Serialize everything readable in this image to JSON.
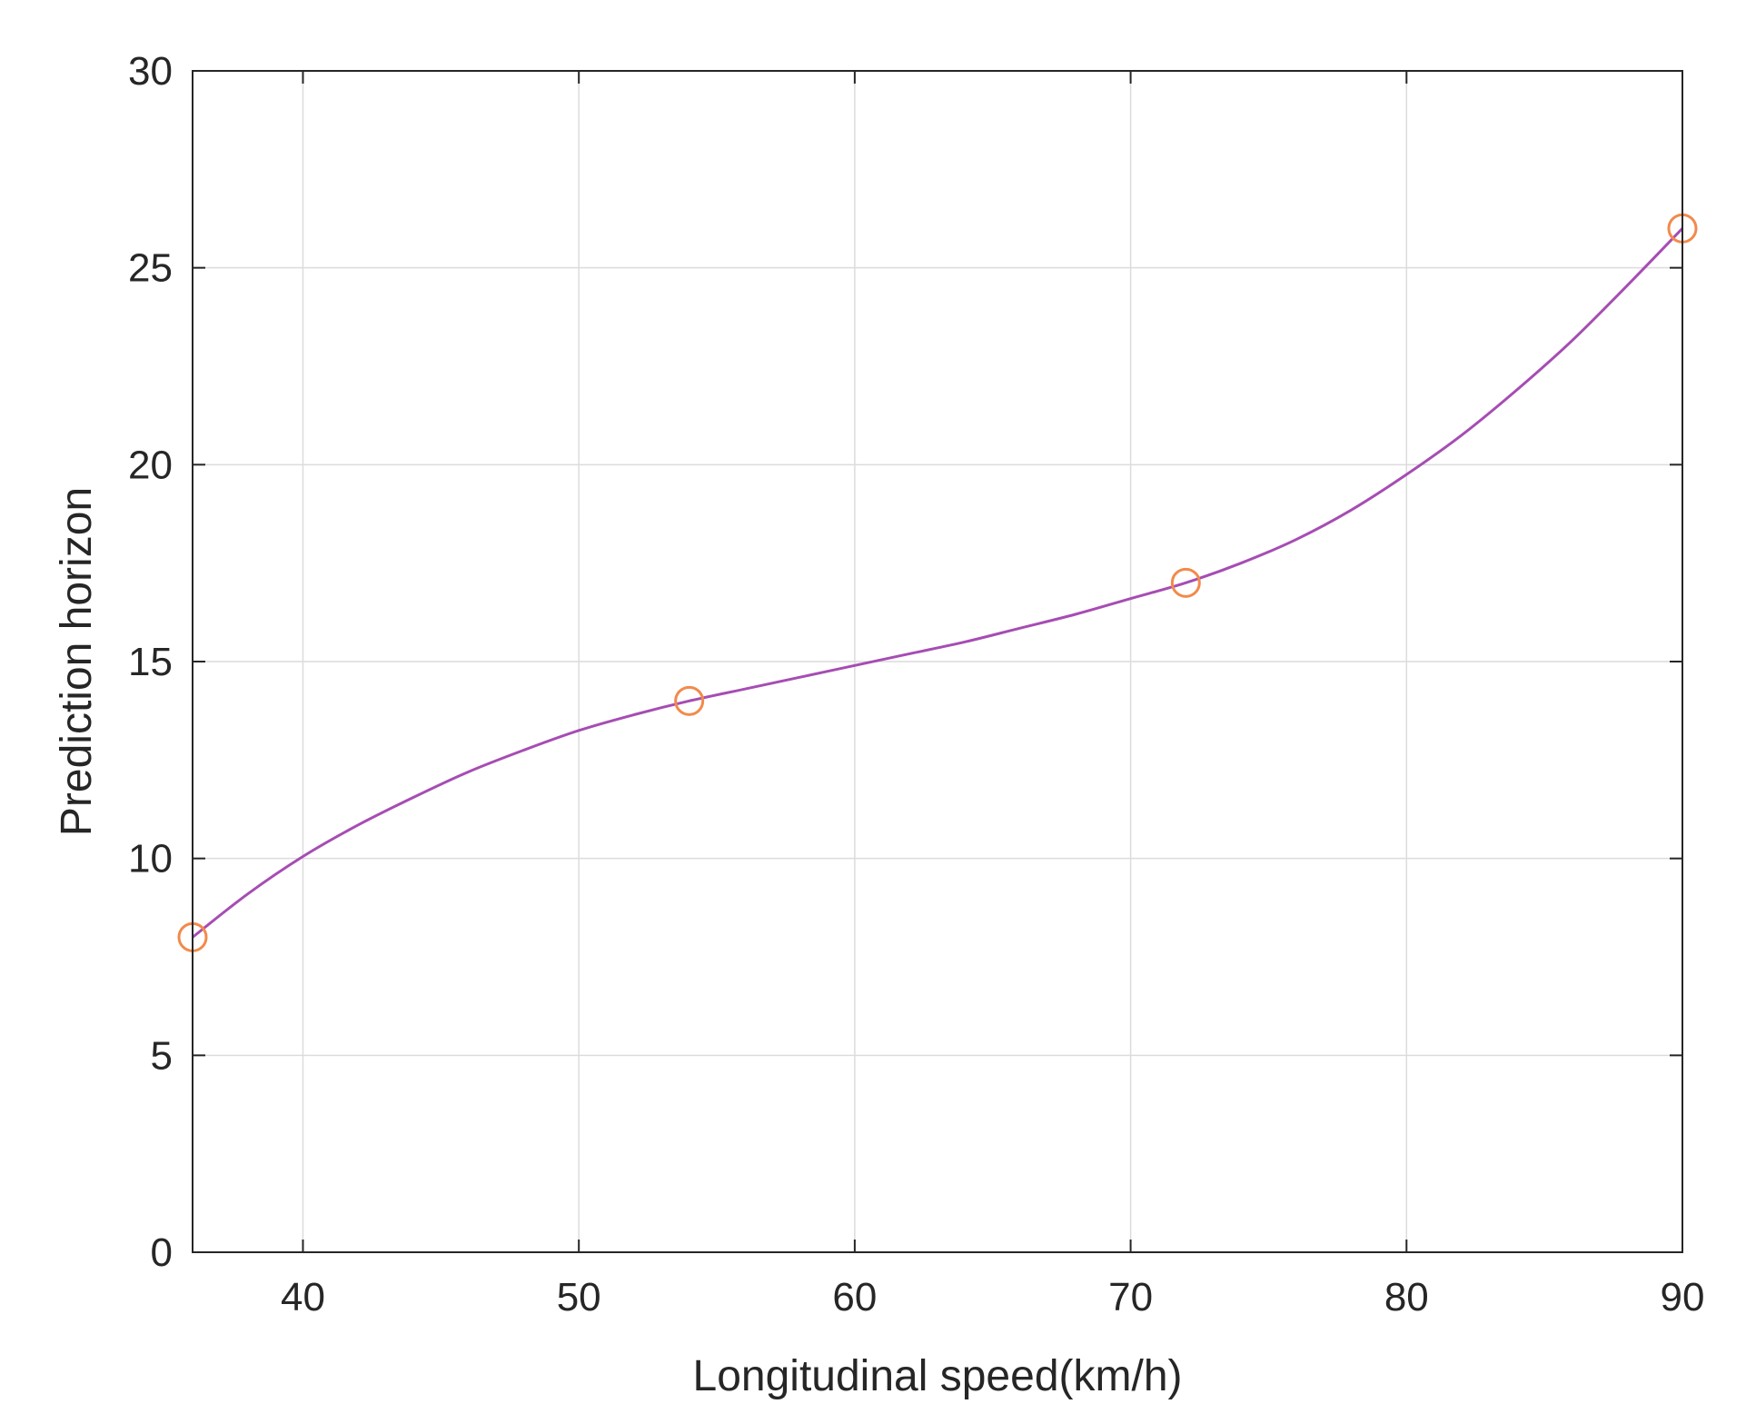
{
  "chart_data": {
    "type": "line",
    "title": "",
    "xlabel": "Longitudinal speed(km/h)",
    "ylabel": "Prediction horizon",
    "xlim": [
      36,
      90
    ],
    "ylim": [
      0,
      30
    ],
    "xticks": [
      40,
      50,
      60,
      70,
      80,
      90
    ],
    "yticks": [
      0,
      5,
      10,
      15,
      20,
      25,
      30
    ],
    "grid": true,
    "series": [
      {
        "kind": "fitted-curve",
        "color": "#a64db3",
        "x": [
          36,
          38,
          40,
          42,
          44,
          46,
          48,
          50,
          52,
          54,
          56,
          58,
          60,
          62,
          64,
          66,
          68,
          70,
          72,
          74,
          76,
          78,
          80,
          82,
          84,
          86,
          88,
          90
        ],
        "values": [
          8.0,
          9.1,
          10.05,
          10.85,
          11.55,
          12.2,
          12.75,
          13.25,
          13.65,
          14.0,
          14.3,
          14.6,
          14.9,
          15.2,
          15.5,
          15.85,
          16.2,
          16.6,
          17.0,
          17.5,
          18.1,
          18.85,
          19.75,
          20.75,
          21.9,
          23.15,
          24.55,
          26.0
        ]
      },
      {
        "kind": "markers",
        "marker": "circle",
        "color": "#f28a4b",
        "x": [
          36,
          54,
          72,
          90
        ],
        "values": [
          8,
          14,
          17,
          26
        ]
      }
    ]
  }
}
